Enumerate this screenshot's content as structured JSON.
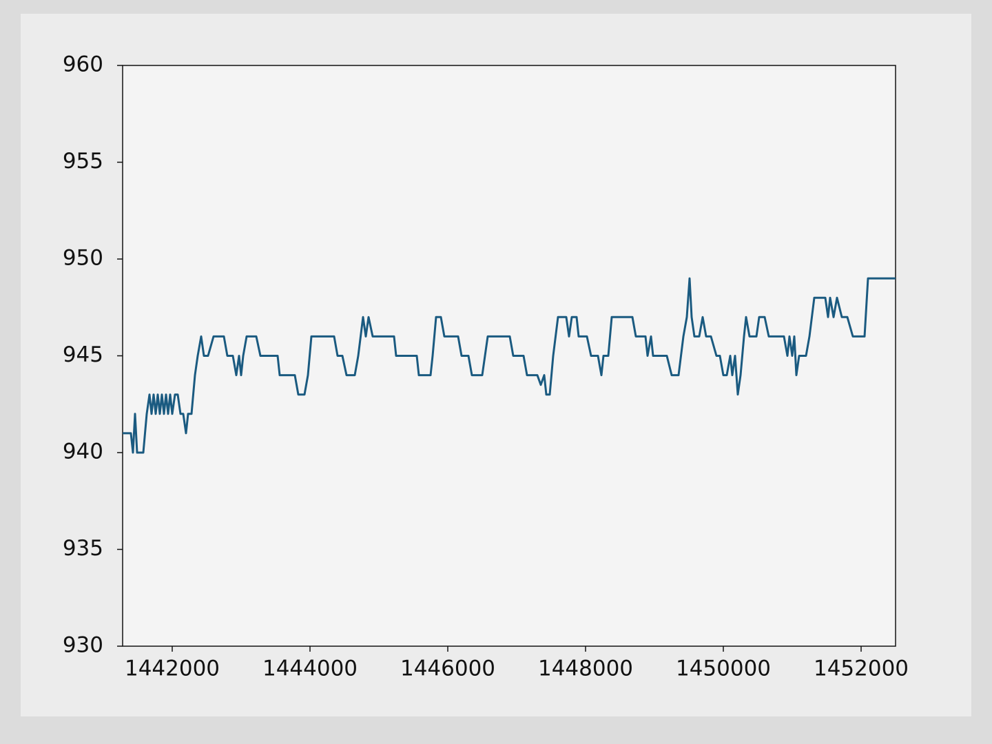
{
  "chart_data": {
    "type": "line",
    "x": [
      1441280,
      1441400,
      1441430,
      1441460,
      1441490,
      1441580,
      1441630,
      1441670,
      1441700,
      1441730,
      1441760,
      1441790,
      1441820,
      1441850,
      1441880,
      1441910,
      1441940,
      1441970,
      1442000,
      1442040,
      1442080,
      1442120,
      1442160,
      1442200,
      1442230,
      1442280,
      1442330,
      1442370,
      1442420,
      1442460,
      1442520,
      1442600,
      1442750,
      1442800,
      1442880,
      1442930,
      1442970,
      1443000,
      1443030,
      1443080,
      1443220,
      1443280,
      1443400,
      1443530,
      1443560,
      1443780,
      1443830,
      1443920,
      1443970,
      1444020,
      1444350,
      1444400,
      1444470,
      1444530,
      1444650,
      1444700,
      1444770,
      1444810,
      1444850,
      1444910,
      1445100,
      1445220,
      1445250,
      1445350,
      1445550,
      1445580,
      1445750,
      1445780,
      1445830,
      1445900,
      1445950,
      1446150,
      1446200,
      1446300,
      1446350,
      1446500,
      1446580,
      1446900,
      1446950,
      1447100,
      1447150,
      1447300,
      1447350,
      1447400,
      1447430,
      1447480,
      1447530,
      1447600,
      1447720,
      1447760,
      1447800,
      1447870,
      1447900,
      1448020,
      1448080,
      1448180,
      1448230,
      1448260,
      1448330,
      1448380,
      1448680,
      1448730,
      1448870,
      1448900,
      1448950,
      1448980,
      1449180,
      1449250,
      1449350,
      1449420,
      1449470,
      1449510,
      1449540,
      1449580,
      1449650,
      1449700,
      1449750,
      1449820,
      1449900,
      1449950,
      1450000,
      1450050,
      1450100,
      1450130,
      1450170,
      1450210,
      1450250,
      1450300,
      1450330,
      1450380,
      1450480,
      1450520,
      1450600,
      1450660,
      1450880,
      1450930,
      1450960,
      1451000,
      1451030,
      1451060,
      1451100,
      1451200,
      1451250,
      1451320,
      1451480,
      1451520,
      1451550,
      1451600,
      1451650,
      1451720,
      1451800,
      1451880,
      1452050,
      1452100,
      1452500
    ],
    "values": [
      941,
      941,
      940,
      942,
      940,
      940,
      942,
      943,
      942,
      943,
      942,
      943,
      942,
      943,
      942,
      943,
      942,
      943,
      942,
      943,
      943,
      942,
      942,
      941,
      942,
      942,
      944,
      945,
      946,
      945,
      945,
      946,
      946,
      945,
      945,
      944,
      945,
      944,
      945,
      946,
      946,
      945,
      945,
      945,
      944,
      944,
      943,
      943,
      944,
      946,
      946,
      945,
      945,
      944,
      944,
      945,
      947,
      946,
      947,
      946,
      946,
      946,
      945,
      945,
      945,
      944,
      944,
      945,
      947,
      947,
      946,
      946,
      945,
      945,
      944,
      944,
      946,
      946,
      945,
      945,
      944,
      944,
      943.5,
      944,
      943,
      943,
      945,
      947,
      947,
      946,
      947,
      947,
      946,
      946,
      945,
      945,
      944,
      945,
      945,
      947,
      947,
      946,
      946,
      945,
      946,
      945,
      945,
      944,
      944,
      946,
      947,
      949,
      947,
      946,
      946,
      947,
      946,
      946,
      945,
      945,
      944,
      944,
      945,
      944,
      945,
      943,
      944,
      946,
      947,
      946,
      946,
      947,
      947,
      946,
      946,
      945,
      946,
      945,
      946,
      944,
      945,
      945,
      946,
      948,
      948,
      947,
      948,
      947,
      948,
      947,
      947,
      946,
      946,
      949,
      949
    ],
    "color": "#1a5a80",
    "xlim": [
      1441280,
      1452500
    ],
    "xticks": [
      1442000,
      1444000,
      1446000,
      1448000,
      1450000,
      1452000
    ],
    "ylim": [
      930,
      960
    ],
    "yticks": [
      930,
      935,
      940,
      945,
      950,
      955,
      960
    ]
  }
}
